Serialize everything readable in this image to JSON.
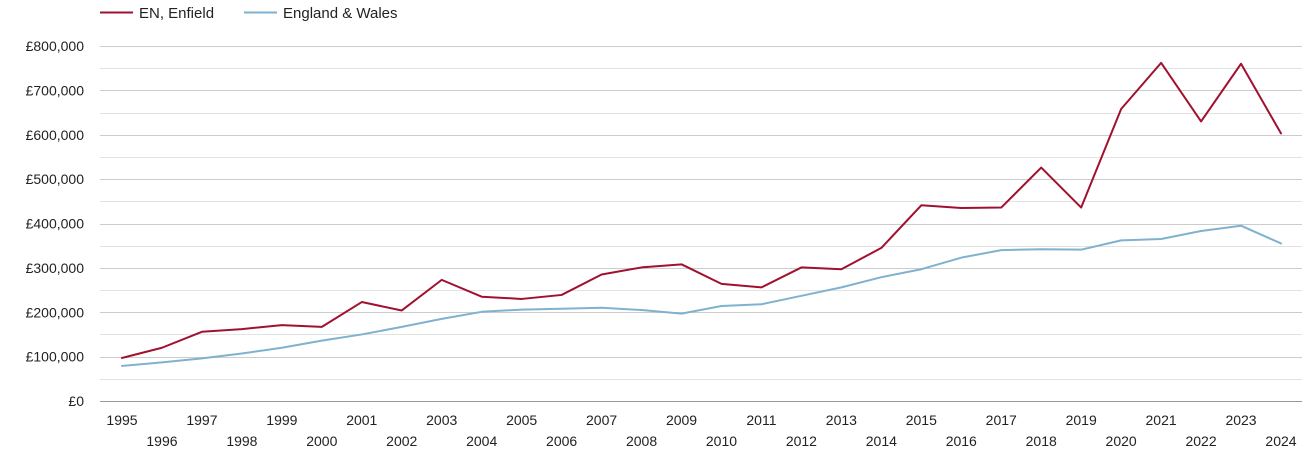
{
  "chart_data": {
    "type": "line",
    "title": "",
    "xlabel": "",
    "ylabel": "",
    "x": [
      1995,
      1996,
      1997,
      1998,
      1999,
      2000,
      2001,
      2002,
      2003,
      2004,
      2005,
      2006,
      2007,
      2008,
      2009,
      2010,
      2011,
      2012,
      2013,
      2014,
      2015,
      2016,
      2017,
      2018,
      2019,
      2020,
      2021,
      2022,
      2023,
      2024
    ],
    "x_tick_labels": [
      "1995",
      "1996",
      "1997",
      "1998",
      "1999",
      "2000",
      "2001",
      "2002",
      "2003",
      "2004",
      "2005",
      "2006",
      "2007",
      "2008",
      "2009",
      "2010",
      "2011",
      "2012",
      "2013",
      "2014",
      "2015",
      "2016",
      "2017",
      "2018",
      "2019",
      "2020",
      "2021",
      "2022",
      "2023",
      "2024"
    ],
    "y_tick_labels": [
      "£0",
      "£100,000",
      "£200,000",
      "£300,000",
      "£400,000",
      "£500,000",
      "£600,000",
      "£700,000",
      "£800,000"
    ],
    "ylim": [
      0,
      800000
    ],
    "y_major_ticks": [
      0,
      100000,
      200000,
      300000,
      400000,
      500000,
      600000,
      700000,
      800000
    ],
    "y_minor_gridlines": true,
    "grid": true,
    "legend_position": "top-left",
    "series": [
      {
        "name": "EN, Enfield",
        "color": "#a0112f",
        "values": [
          97000,
          120000,
          156000,
          162000,
          171000,
          167000,
          223000,
          204000,
          273000,
          235000,
          230000,
          239000,
          285000,
          301000,
          308000,
          264000,
          256000,
          301000,
          297000,
          345000,
          441000,
          435000,
          436000,
          526000,
          436000,
          658000,
          762000,
          630000,
          760000,
          603000
        ]
      },
      {
        "name": "England & Wales",
        "color": "#7fb2cf",
        "values": [
          79000,
          87000,
          96000,
          107000,
          120000,
          136000,
          150000,
          167000,
          185000,
          201000,
          206000,
          208000,
          210000,
          205000,
          197000,
          214000,
          218000,
          237000,
          256000,
          279000,
          297000,
          323000,
          340000,
          342000,
          341000,
          362000,
          365000,
          383000,
          395000,
          355000
        ]
      }
    ]
  }
}
